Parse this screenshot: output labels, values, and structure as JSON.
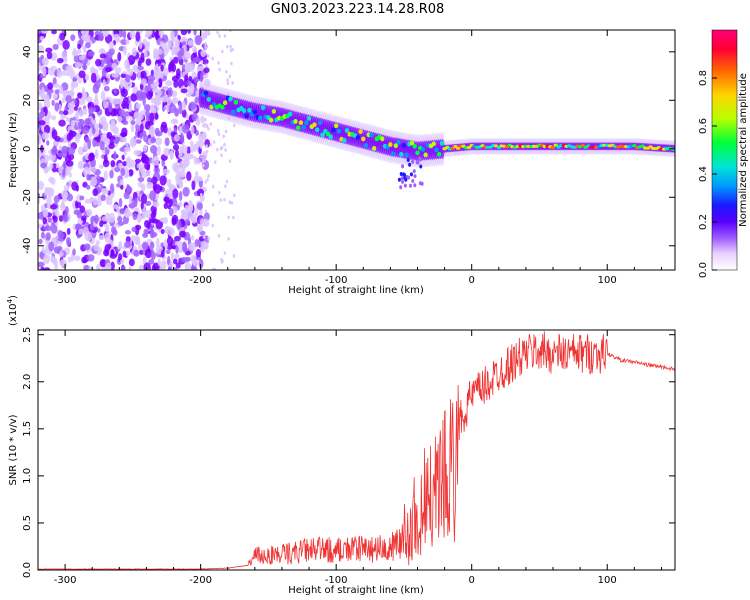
{
  "title": "GN03.2023.223.14.28.R08",
  "colors": {
    "snr_line": "#ef3434",
    "colormap": [
      "#ffffff",
      "#e6ccff",
      "#b07cff",
      "#7a00ff",
      "#1a1aff",
      "#0099ff",
      "#00e5d6",
      "#00ff3a",
      "#b7ff00",
      "#ffd400",
      "#ff6600",
      "#ff0033",
      "#ff0077"
    ]
  },
  "chart_data": [
    {
      "type": "heatmap",
      "title": "GN03.2023.223.14.28.R08",
      "xlabel": "Height of straight line (km)",
      "ylabel": "Frequency (Hz)",
      "xlim": [
        -320,
        150
      ],
      "ylim": [
        -50,
        49
      ],
      "xticks": [
        -300,
        -200,
        -100,
        0,
        100
      ],
      "yticks": [
        -40,
        -20,
        0,
        20,
        40
      ],
      "colorbar": {
        "label": "Normalized spectral amplitude",
        "range": [
          0.0,
          1.0
        ],
        "ticks": [
          "0.0",
          "0.2",
          "0.4",
          "0.6",
          "0.8"
        ]
      },
      "features": {
        "noise_region_x": [
          -320,
          -195
        ],
        "signal_ridge": {
          "x": [
            -200,
            -180,
            -160,
            -140,
            -120,
            -100,
            -80,
            -60,
            -40,
            -20,
            0,
            20,
            40,
            60,
            80,
            100,
            120,
            150
          ],
          "freq": [
            21,
            18,
            15,
            13,
            10,
            7,
            4,
            1,
            -1,
            0,
            1,
            1,
            1,
            1,
            1,
            1,
            1,
            0
          ]
        }
      }
    },
    {
      "type": "line",
      "xlabel": "Height of straight line (km)",
      "ylabel": "SNR (10 * v/v)",
      "y_multiplier": "(x10^4)",
      "xlim": [
        -320,
        150
      ],
      "ylim": [
        0,
        2.55
      ],
      "xticks": [
        -300,
        -200,
        -100,
        0,
        100
      ],
      "yticks": [
        "0.0",
        "0.5",
        "1.0",
        "1.5",
        "2.0",
        "2.5"
      ],
      "series": [
        {
          "x": [
            -320,
            -250,
            -200,
            -180,
            -165,
            -160,
            -140,
            -120,
            -100,
            -80,
            -60,
            -50,
            -45,
            -40,
            -35,
            -30,
            -25,
            -20,
            -15,
            -10,
            -5,
            0,
            10,
            20,
            30,
            40,
            50,
            60,
            70,
            80,
            90,
            100,
            110,
            120,
            130,
            140,
            150
          ],
          "y": [
            0.01,
            0.01,
            0.01,
            0.02,
            0.05,
            0.14,
            0.16,
            0.2,
            0.2,
            0.21,
            0.22,
            0.3,
            0.5,
            0.7,
            0.85,
            0.95,
            1.1,
            1.25,
            1.4,
            1.55,
            1.7,
            1.85,
            1.95,
            2.1,
            2.2,
            2.3,
            2.33,
            2.3,
            2.3,
            2.3,
            2.3,
            2.3,
            2.23,
            2.21,
            2.18,
            2.16,
            2.13
          ]
        }
      ]
    }
  ]
}
